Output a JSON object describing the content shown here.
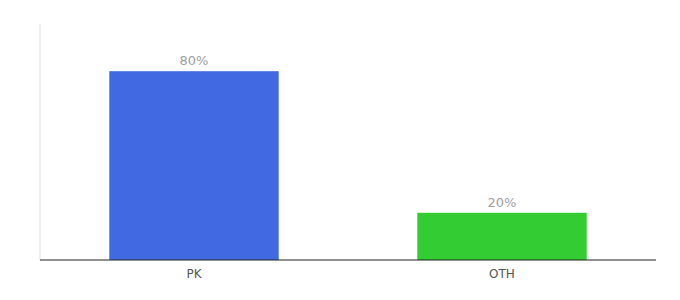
{
  "chart_data": {
    "type": "bar",
    "categories": [
      "PK",
      "OTH"
    ],
    "values": [
      80,
      20
    ],
    "value_labels": [
      "80%",
      "20%"
    ],
    "colors": [
      "#4169e1",
      "#33cc33"
    ],
    "ylim": [
      0,
      100
    ],
    "data_labels": true,
    "tick_labels": "x"
  }
}
